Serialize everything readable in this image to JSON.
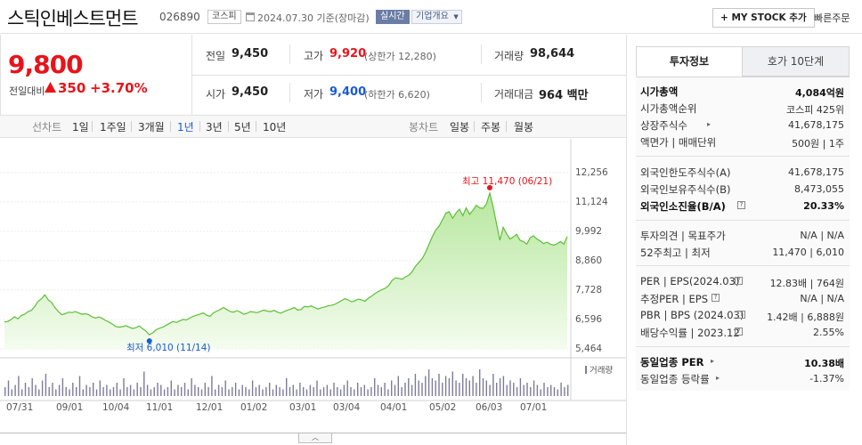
{
  "header": {
    "company": "스틱인베스트먼트",
    "code": "026890",
    "market": "코스피",
    "date_text": "2024.07.30  기준(장마감)",
    "realtime": "실시간",
    "overview": "기업개요",
    "mystock": "+ MY STOCK 추가",
    "quick_order": "빠른주문"
  },
  "summary": {
    "price": "9,800",
    "change_label": "전일대비",
    "change": "350",
    "change_pct": "+3.70%",
    "prev_close_label": "전일",
    "prev_close": "9,450",
    "open_label": "시가",
    "open": "9,450",
    "high_label": "고가",
    "high": "9,920",
    "upper_limit": "(상한가 12,280)",
    "low_label": "저가",
    "low": "9,400",
    "lower_limit": "(하한가 6,620)",
    "volume_label": "거래량",
    "volume": "98,644",
    "amount_label": "거래대금",
    "amount": "964 백만"
  },
  "periods": {
    "line_label": "선차트",
    "line": [
      "1일",
      "1주일",
      "3개월",
      "1년",
      "3년",
      "5년",
      "10년"
    ],
    "selected": "1년",
    "candle_label": "봉차트",
    "candle": [
      "일봉",
      "주봉",
      "월봉"
    ]
  },
  "chart_data": {
    "type": "area",
    "y_ticks": [
      "12,256",
      "11,124",
      "9,992",
      "8,860",
      "7,728",
      "6,596",
      "5,464"
    ],
    "x_ticks": [
      "07/31",
      "09/01",
      "10/04",
      "11/01",
      "12/01",
      "01/02",
      "03/01",
      "03/04",
      "04/01",
      "05/02",
      "06/03",
      "07/01"
    ],
    "ylim": [
      5464,
      12256
    ],
    "high_note": "최고 11,470 (06/21)",
    "low_note": "최저 6,010 (11/14)",
    "high": 11470,
    "low": 6010,
    "volume_legend": "거래량",
    "series": [
      {
        "values": [
          6500,
          6520,
          6600,
          6700,
          6620,
          6750,
          6800,
          6900,
          6950,
          7100,
          7300,
          7400,
          7550,
          7350,
          7250,
          7050,
          6900,
          6780,
          6820,
          6880,
          6860,
          6900,
          6850,
          6800,
          6820,
          6780,
          6700,
          6650,
          6700,
          6640,
          6560,
          6500,
          6420,
          6330,
          6300,
          6320,
          6360,
          6300,
          6250,
          6280,
          6350,
          6240,
          6150,
          6010,
          6080,
          6200,
          6260,
          6300,
          6380,
          6450,
          6520,
          6480,
          6540,
          6600,
          6580,
          6650,
          6720,
          6760,
          6800,
          6850,
          6760,
          6720,
          6850,
          6920,
          6980,
          7060,
          6980,
          6900,
          6880,
          6940,
          6880,
          6800,
          6840,
          6900,
          6880,
          6860,
          6910,
          6960,
          6920,
          6900,
          6950,
          6880,
          6840,
          6900,
          6960,
          7000,
          7060,
          6960,
          6980,
          7100,
          7080,
          7120,
          7060,
          7000,
          7050,
          7080,
          7120,
          7140,
          7180,
          7250,
          7320,
          7400,
          7350,
          7280,
          7320,
          7380,
          7350,
          7300,
          7420,
          7500,
          7600,
          7680,
          7750,
          7800,
          7900,
          8100,
          8200,
          8180,
          8150,
          8240,
          8300,
          8450,
          8650,
          8800,
          8950,
          9200,
          9500,
          9800,
          10050,
          10200,
          10450,
          10700,
          10750,
          10500,
          10700,
          10850,
          10600,
          10900,
          10650,
          10800,
          11000,
          10900,
          10880,
          11050,
          11470,
          10950,
          10300,
          9650,
          10150,
          9900,
          9700,
          9780,
          9880,
          9650,
          9600,
          9500,
          9750,
          9820,
          9700,
          9620,
          9520,
          9580,
          9500,
          9460,
          9520,
          9600,
          9500,
          9800
        ]
      },
      {
        "name": "거래량",
        "values": [
          4,
          7,
          3,
          5,
          9,
          3,
          6,
          4,
          8,
          5,
          3,
          7,
          10,
          4,
          6,
          3,
          5,
          8,
          4,
          3,
          6,
          4,
          9,
          3,
          5,
          4,
          6,
          3,
          7,
          4,
          5,
          3,
          4,
          6,
          3,
          8,
          4,
          5,
          3,
          6,
          4,
          11,
          5,
          3,
          4,
          6,
          5,
          3,
          4,
          7,
          3,
          5,
          4,
          6,
          3,
          8,
          5,
          4,
          3,
          6,
          4,
          9,
          3,
          5,
          4,
          7,
          3,
          4,
          6,
          3,
          5,
          4,
          3,
          7,
          4,
          5,
          3,
          4,
          6,
          3,
          5,
          4,
          3,
          8,
          4,
          5,
          3,
          6,
          4,
          3,
          5,
          4,
          7,
          3,
          4,
          5,
          3,
          6,
          4,
          3,
          5,
          7,
          4,
          3,
          6,
          4,
          5,
          3,
          4,
          8,
          5,
          4,
          6,
          3,
          7,
          5,
          9,
          4,
          6,
          8,
          5,
          10,
          7,
          6,
          9,
          12,
          8,
          7,
          10,
          6,
          9,
          8,
          11,
          7,
          6,
          10,
          8,
          7,
          9,
          6,
          12,
          8,
          7,
          5,
          10,
          6,
          8,
          9,
          5,
          7,
          6,
          4,
          8,
          5,
          6,
          4,
          7,
          5,
          3,
          6,
          4,
          5,
          4,
          3,
          6,
          4,
          5
        ]
      }
    ]
  },
  "panel": {
    "tab_invest": "투자정보",
    "tab_orderbook": "호가 10단계",
    "rows1": [
      {
        "label": "시가총액",
        "value": "4,084억원"
      },
      {
        "label": "시가총액순위",
        "value": "코스피  425위"
      },
      {
        "label": "상장주식수",
        "value": "41,678,175"
      },
      {
        "label": "액면가 | 매매단위",
        "value": "500원 | 1주"
      }
    ],
    "rows2": [
      {
        "label": "외국인한도주식수(A)",
        "value": "41,678,175"
      },
      {
        "label": "외국인보유주식수(B)",
        "value": "8,473,055"
      },
      {
        "label": "외국인소진율(B/A)",
        "value": "20.33%"
      }
    ],
    "rows3": [
      {
        "label": "투자의견 | 목표주가",
        "value": "N/A | N/A"
      },
      {
        "label": "52주최고 | 최저",
        "value": "11,470 | 6,010"
      }
    ],
    "rows4": [
      {
        "label": "PER | EPS(2024.03)",
        "value": "12.83배 | 764원"
      },
      {
        "label": "추정PER | EPS",
        "value": "N/A | N/A"
      },
      {
        "label": "PBR | BPS (2024.03)",
        "value": "1.42배 | 6,888원"
      },
      {
        "label": "배당수익률 | 2023.12",
        "value": "2.55%"
      }
    ],
    "rows5": [
      {
        "label": "동일업종 PER",
        "value": "10.38배"
      },
      {
        "label": "동일업종 등락률",
        "value": "-1.37%"
      }
    ],
    "collapse_icon": "chevron-up-icon"
  }
}
